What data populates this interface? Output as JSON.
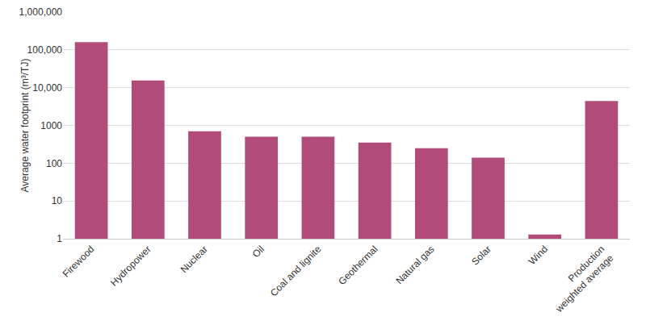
{
  "chart_data": {
    "type": "bar",
    "y_label": "Average water footprint (m³/TJ)",
    "categories": [
      "Firewood",
      "Hydropower",
      "Nuclear",
      "Oil",
      "Coal and lignite",
      "Geothermal",
      "Natural gas",
      "Solar",
      "Wind",
      "Production\nweighted average"
    ],
    "values": [
      160000,
      15500,
      700,
      500,
      500,
      350,
      250,
      140,
      1.3,
      4400
    ],
    "color": "#b04b7a",
    "log": "y",
    "ylim": [
      1,
      1000000
    ],
    "yticks": [
      1,
      10,
      100,
      1000,
      {
        "value": 10000,
        "label": "10,000"
      },
      {
        "value": 100000,
        "label": "100,000"
      },
      {
        "value": 1000000,
        "label": "1,000,000"
      }
    ],
    "grid": true
  }
}
